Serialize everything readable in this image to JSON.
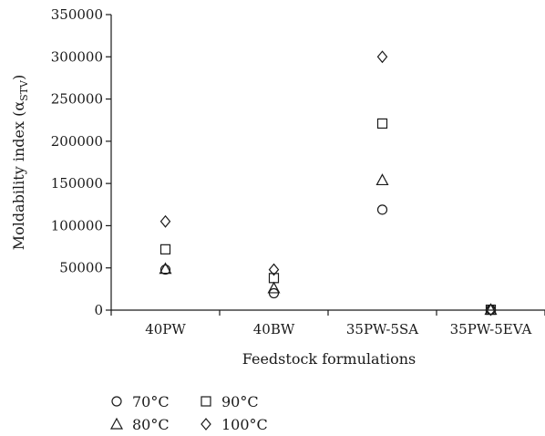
{
  "chart_data": {
    "type": "scatter",
    "xlabel": "Feedstock formulations",
    "ylabel": "Moldability index (α",
    "ylabel_sub": "STV",
    "ylabel_close": ")",
    "categories": [
      "40PW",
      "40BW",
      "35PW-5SA",
      "35PW-5EVA"
    ],
    "ylim": [
      0,
      350000
    ],
    "yticks": [
      0,
      50000,
      100000,
      150000,
      200000,
      250000,
      300000,
      350000
    ],
    "ytick_labels": [
      "0",
      "50000",
      "100000",
      "150000",
      "200000",
      "250000",
      "300000",
      "350000"
    ],
    "grid": false,
    "legend_position": "bottom-left",
    "series": [
      {
        "name": "70°C",
        "marker": "circle",
        "values": [
          48000,
          20000,
          119000,
          500
        ]
      },
      {
        "name": "80°C",
        "marker": "triangle",
        "values": [
          49000,
          26000,
          154000,
          500
        ]
      },
      {
        "name": "90°C",
        "marker": "square",
        "values": [
          72000,
          38000,
          221000,
          500
        ]
      },
      {
        "name": "100°C",
        "marker": "diamond",
        "values": [
          105000,
          48000,
          300000,
          500
        ]
      }
    ],
    "legend_order": [
      "70°C",
      "90°C",
      "80°C",
      "100°C"
    ]
  }
}
